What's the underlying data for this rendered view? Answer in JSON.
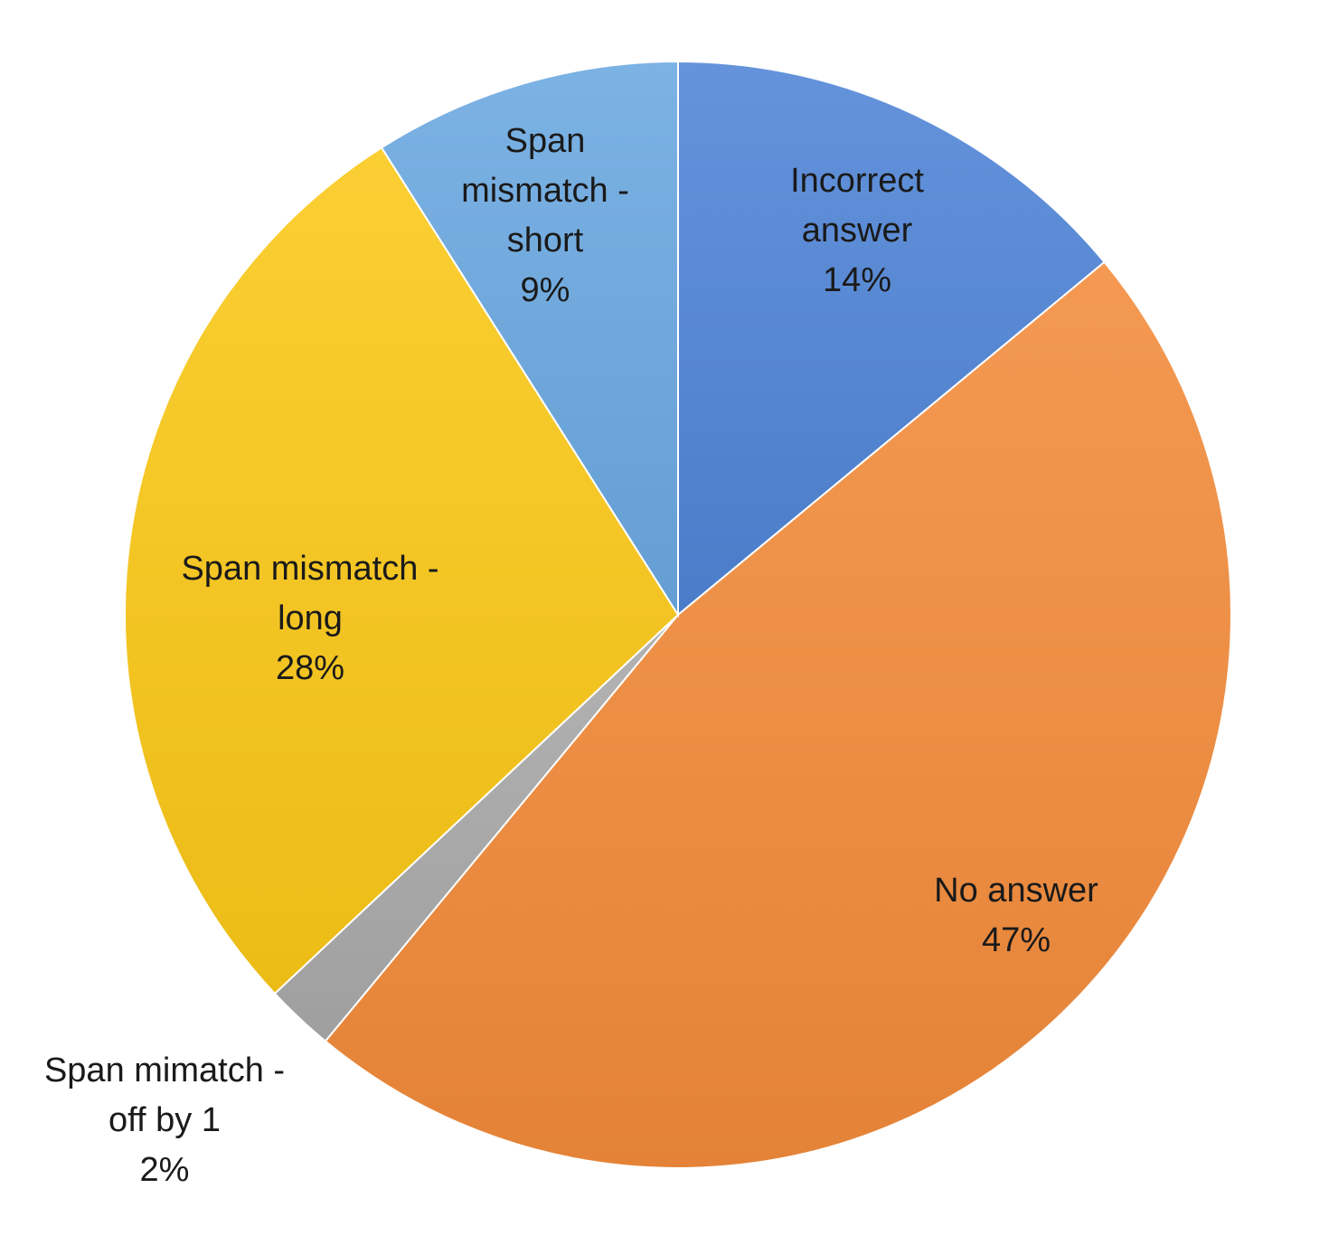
{
  "chart_data": {
    "type": "pie",
    "title": "",
    "slices": [
      {
        "label_lines": [
          "Incorrect",
          "answer"
        ],
        "value": 14,
        "value_label": "14%",
        "color": "#4f84d6"
      },
      {
        "label_lines": [
          "No answer"
        ],
        "value": 47,
        "value_label": "47%",
        "color": "#f38b3a"
      },
      {
        "label_lines": [
          "Span mimatch -",
          "off by 1"
        ],
        "value": 2,
        "value_label": "2%",
        "color": "#a9a9a9"
      },
      {
        "label_lines": [
          "Span mismatch -",
          "long"
        ],
        "value": 28,
        "value_label": "28%",
        "color": "#fbc817"
      },
      {
        "label_lines": [
          "Span",
          "mismatch -",
          "short"
        ],
        "value": 9,
        "value_label": "9%",
        "color": "#6aa8e0"
      }
    ]
  }
}
